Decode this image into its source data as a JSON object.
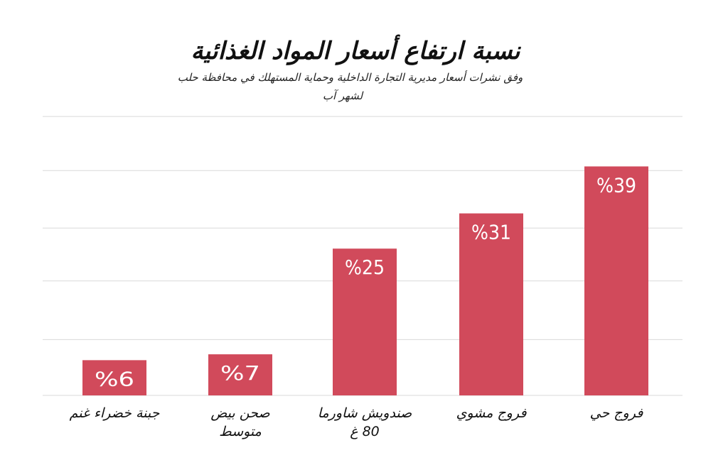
{
  "chart_data": {
    "type": "bar",
    "title": "نسبة ارتفاع أسعار المواد الغذائية",
    "subtitle": "وفق نشرات أسعار مديرية التجارة الداخلية وحماية المستهلك في محافظة حلب",
    "subtitle2": "لشهر آب",
    "categories": [
      [
        "جبنة خضراء غنم"
      ],
      [
        "صحن بيض",
        "متوسط"
      ],
      [
        "صندويش شاورما",
        "80 غ"
      ],
      [
        "فروج مشوي"
      ],
      [
        "فروج حي"
      ]
    ],
    "values": [
      6,
      7,
      25,
      31,
      39
    ],
    "data_labels": [
      "%6",
      "%7",
      "%25",
      "%31",
      "%39"
    ],
    "ylim": [
      0,
      48
    ],
    "grid": true,
    "legend": "none",
    "bar_color": "#d14a5b",
    "grid_color": "#d9d9d9"
  }
}
